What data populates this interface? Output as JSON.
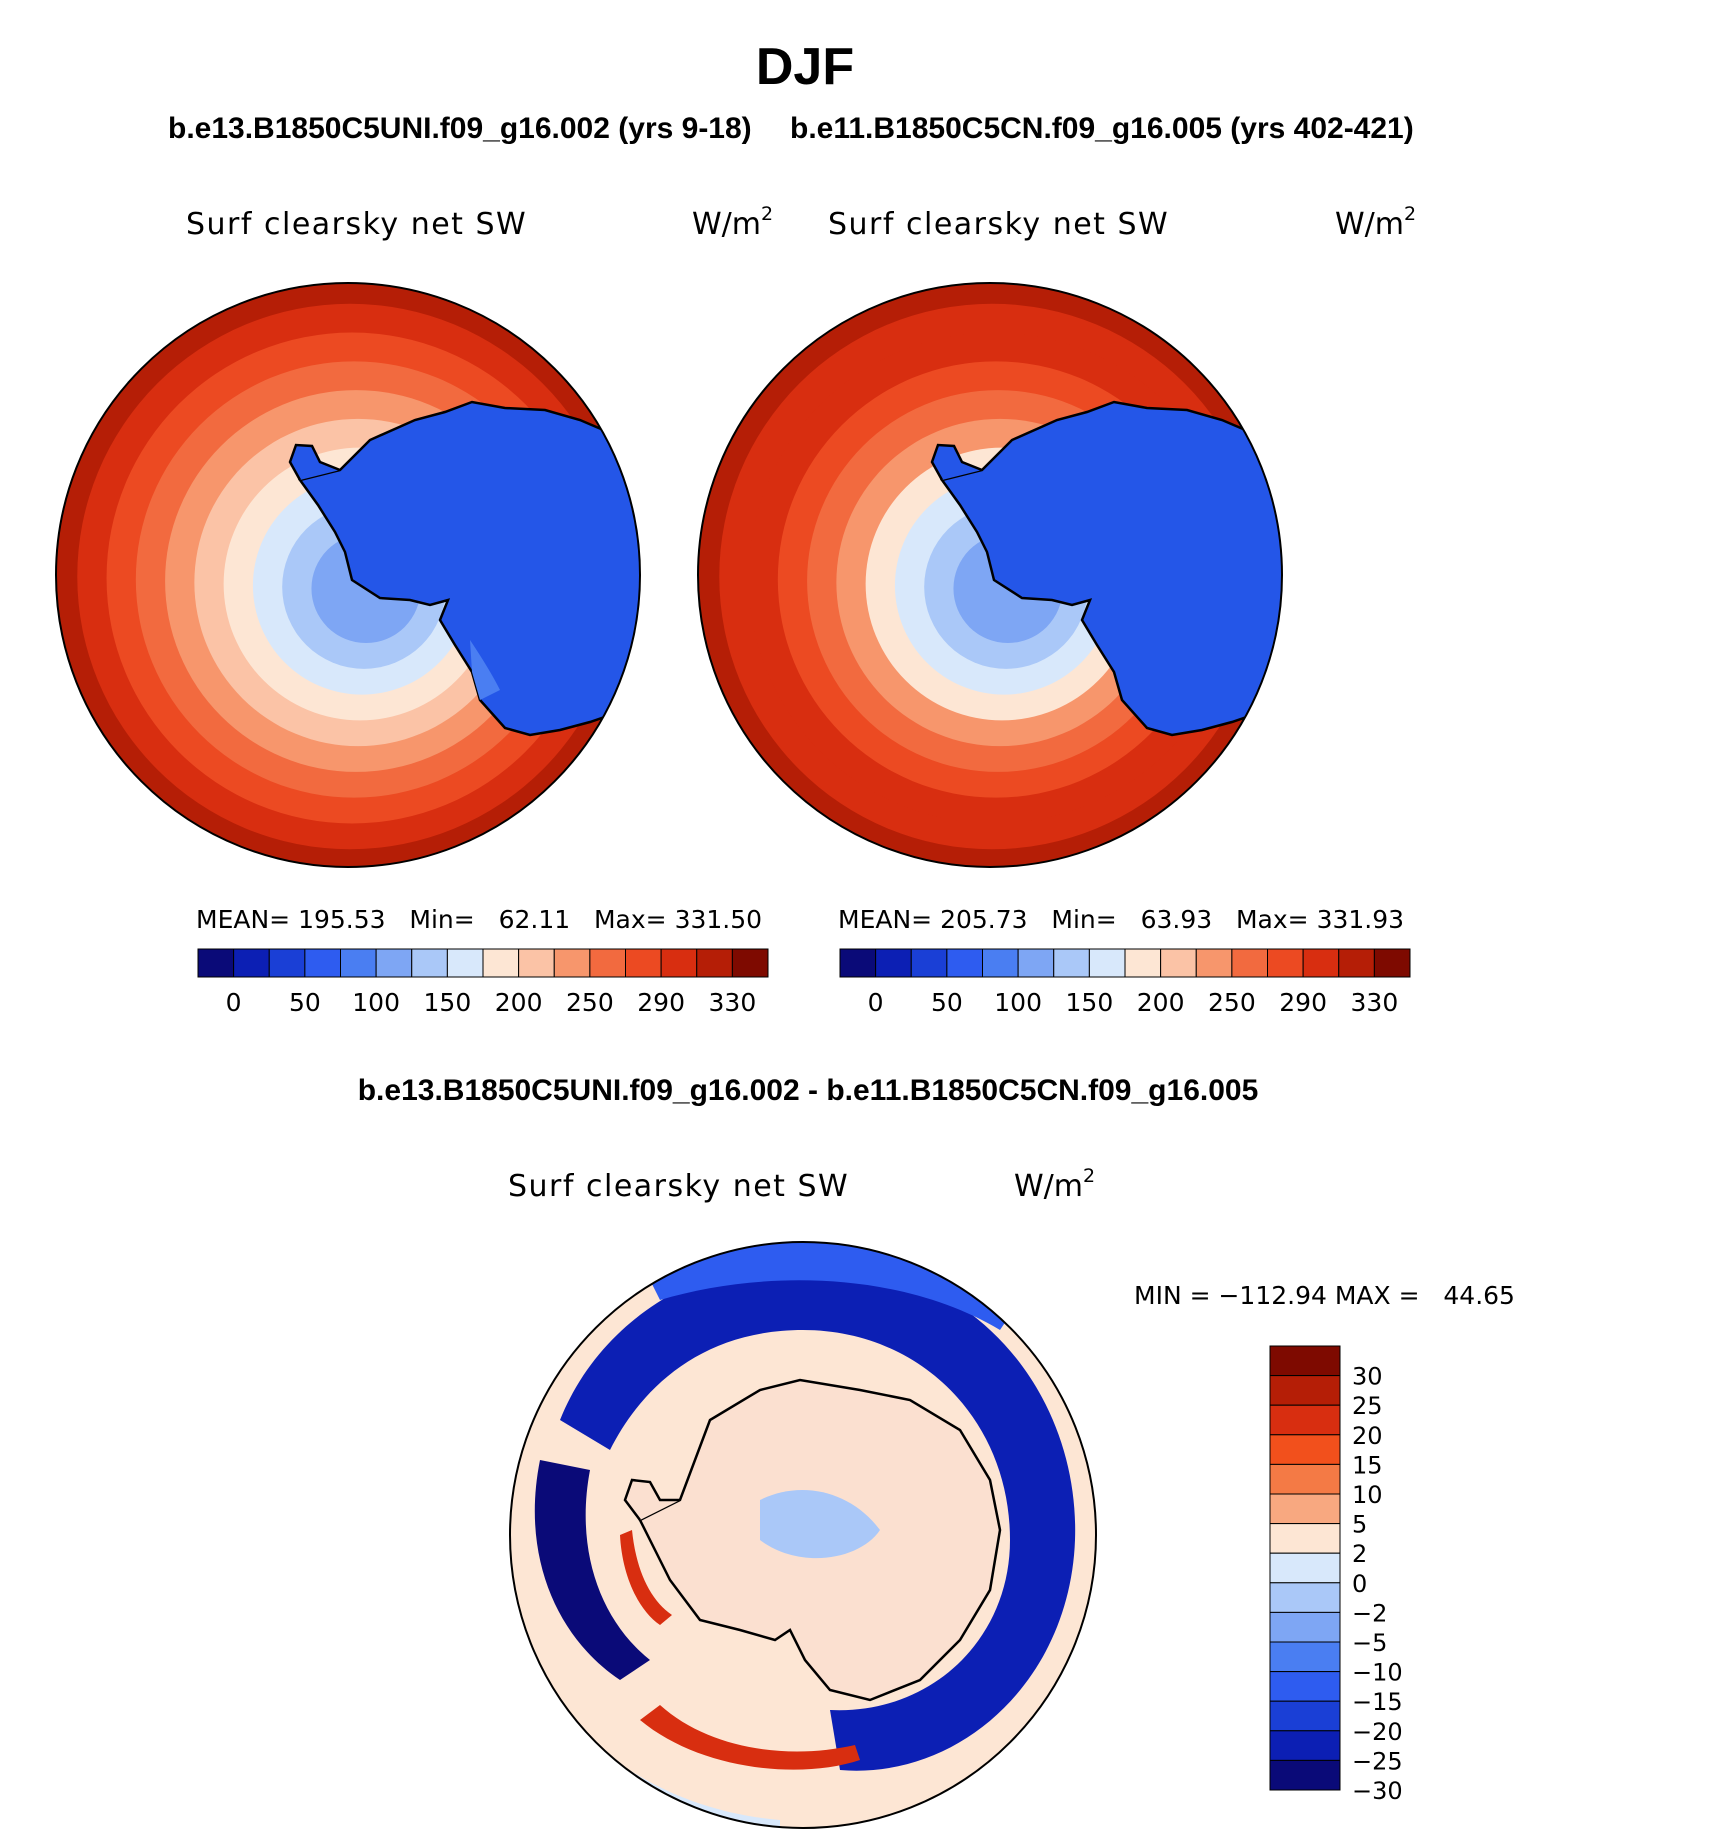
{
  "page_title": "DJF",
  "panels": [
    {
      "case_title": "b.e13.B1850C5UNI.f09_g16.002 (yrs 9-18)",
      "variable": "Surf clearsky net SW",
      "units_base": "W/m",
      "units_exp": "2",
      "stats": {
        "mean_label": "MEAN=",
        "mean": "195.53",
        "min_label": "Min=",
        "min": "62.11",
        "max_label": "Max=",
        "max": "331.50"
      }
    },
    {
      "case_title": "b.e11.B1850C5CN.f09_g16.005 (yrs 402-421)",
      "variable": "Surf clearsky net SW",
      "units_base": "W/m",
      "units_exp": "2",
      "stats": {
        "mean_label": "MEAN=",
        "mean": "205.73",
        "min_label": "Min=",
        "min": "63.93",
        "max_label": "Max=",
        "max": "331.93"
      }
    }
  ],
  "diff_panel": {
    "title": "b.e13.B1850C5UNI.f09_g16.002 - b.e11.B1850C5CN.f09_g16.005",
    "variable": "Surf clearsky net SW",
    "units_base": "W/m",
    "units_exp": "2",
    "minmax": "MIN = −112.94 MAX =   44.65"
  },
  "chart_data": [
    {
      "type": "heatmap",
      "projection": "south-polar-stereographic",
      "title": "b.e13.B1850C5UNI.f09_g16.002 (yrs 9-18)",
      "field": "Surf clearsky net SW",
      "units": "W/m2",
      "mean": 195.53,
      "min": 62.11,
      "max": 331.5,
      "levels": [
        0,
        25,
        50,
        75,
        100,
        125,
        150,
        175,
        200,
        225,
        250,
        270,
        290,
        310,
        330
      ],
      "colorbar_ticks": [
        "0",
        "50",
        "100",
        "150",
        "200",
        "250",
        "290",
        "330"
      ],
      "colors": [
        "#0a0a78",
        "#0c1fb4",
        "#1a3fd6",
        "#2e5cf0",
        "#4a7ef2",
        "#7ea6f4",
        "#aac8f8",
        "#d8e8fb",
        "#fde6d4",
        "#fbc3a6",
        "#f7966c",
        "#f26a3f",
        "#ec4a22",
        "#d82e10",
        "#b51e06",
        "#7e0a00"
      ],
      "ring_values": [
        318,
        300,
        282,
        262,
        240,
        215,
        185,
        160,
        128,
        105
      ]
    },
    {
      "type": "heatmap",
      "projection": "south-polar-stereographic",
      "title": "b.e11.B1850C5CN.f09_g16.005 (yrs 402-421)",
      "field": "Surf clearsky net SW",
      "units": "W/m2",
      "mean": 205.73,
      "min": 63.93,
      "max": 331.93,
      "levels": [
        0,
        25,
        50,
        75,
        100,
        125,
        150,
        175,
        200,
        225,
        250,
        270,
        290,
        310,
        330
      ],
      "colorbar_ticks": [
        "0",
        "50",
        "100",
        "150",
        "200",
        "250",
        "290",
        "330"
      ],
      "colors": [
        "#0a0a78",
        "#0c1fb4",
        "#1a3fd6",
        "#2e5cf0",
        "#4a7ef2",
        "#7ea6f4",
        "#aac8f8",
        "#d8e8fb",
        "#fde6d4",
        "#fbc3a6",
        "#f7966c",
        "#f26a3f",
        "#ec4a22",
        "#d82e10",
        "#b51e06",
        "#7e0a00"
      ],
      "ring_values": [
        318,
        305,
        290,
        272,
        250,
        225,
        195,
        168,
        135,
        108
      ]
    },
    {
      "type": "heatmap",
      "projection": "south-polar-stereographic",
      "title": "b.e13.B1850C5UNI.f09_g16.002 - b.e11.B1850C5CN.f09_g16.005",
      "field": "Surf clearsky net SW",
      "units": "W/m2",
      "min": -112.94,
      "max": 44.65,
      "levels": [
        -30,
        -25,
        -20,
        -15,
        -10,
        -5,
        -2,
        0,
        2,
        5,
        10,
        15,
        20,
        25,
        30
      ],
      "colorbar_ticks": [
        "30",
        "25",
        "20",
        "15",
        "10",
        "5",
        "2",
        "0",
        "−2",
        "−5",
        "−10",
        "−15",
        "−20",
        "−25",
        "−30"
      ],
      "colors_top_to_bottom": [
        "#7e0a00",
        "#b51e06",
        "#d82e10",
        "#f2501c",
        "#f47a45",
        "#f8a880",
        "#fde6d4",
        "#d8e8fb",
        "#aac8f8",
        "#7ea6f4",
        "#4a7ef2",
        "#2e5cf0",
        "#1a3fd6",
        "#0c1fb4",
        "#0a0a78"
      ],
      "ring_values": [
        -35,
        -30,
        -35,
        1,
        -1,
        3,
        4,
        3
      ]
    }
  ]
}
